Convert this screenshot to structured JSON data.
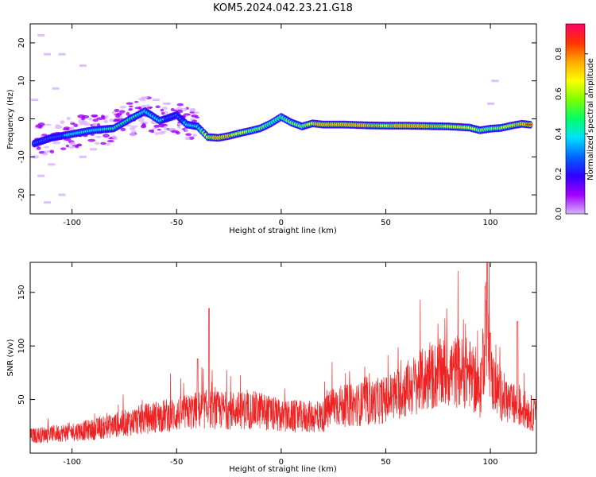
{
  "figure": {
    "title": "KOM5.2024.042.23.21.G18"
  },
  "chart_data": [
    {
      "type": "heatmap",
      "xlabel": "Height of straight line (km)",
      "ylabel": "Frequency (Hz)",
      "xlim": [
        -120,
        122
      ],
      "ylim": [
        -25,
        25
      ],
      "xticks": [
        -100,
        -50,
        0,
        50,
        100
      ],
      "yticks": [
        -20,
        -10,
        0,
        10,
        20
      ],
      "colorbar": {
        "label": "Normalized spectral amplitude",
        "range": [
          0.0,
          0.95
        ],
        "ticks": [
          0.0,
          0.2,
          0.4,
          0.6,
          0.8
        ],
        "tick_labels": [
          "0.0",
          "0.2",
          "0.4",
          "0.6",
          "0.8"
        ],
        "colormap": [
          "#d8b4ff",
          "#a100ff",
          "#3000ff",
          "#0066ff",
          "#00e0ff",
          "#00ff66",
          "#7cff00",
          "#ffff00",
          "#ffaa00",
          "#ff3300",
          "#ff0066"
        ]
      },
      "ridge": {
        "x": [
          -118,
          -110,
          -100,
          -90,
          -80,
          -72,
          -65,
          -58,
          -50,
          -45,
          -40,
          -35,
          -30,
          -25,
          -20,
          -15,
          -10,
          -5,
          0,
          5,
          10,
          15,
          20,
          30,
          40,
          50,
          60,
          70,
          80,
          90,
          95,
          100,
          105,
          110,
          115,
          120
        ],
        "y": [
          -6.5,
          -5,
          -4,
          -3,
          -2.5,
          0,
          2,
          -0.5,
          1,
          -1.5,
          -2,
          -4.8,
          -5,
          -4.5,
          -3.8,
          -3.2,
          -2.5,
          -1.2,
          0.5,
          -1,
          -2,
          -1.2,
          -1.5,
          -1.5,
          -1.7,
          -1.8,
          -1.8,
          -1.9,
          -2,
          -2.3,
          -3,
          -2.6,
          -2.4,
          -1.8,
          -1.3,
          -1.6
        ],
        "amplitude": [
          0.3,
          0.3,
          0.35,
          0.4,
          0.45,
          0.45,
          0.4,
          0.35,
          0.3,
          0.35,
          0.4,
          0.7,
          0.8,
          0.75,
          0.65,
          0.6,
          0.55,
          0.5,
          0.5,
          0.55,
          0.55,
          0.7,
          0.8,
          0.8,
          0.75,
          0.7,
          0.8,
          0.75,
          0.7,
          0.65,
          0.6,
          0.55,
          0.6,
          0.7,
          0.75,
          0.85
        ]
      }
    },
    {
      "type": "line",
      "xlabel": "Height of straight line (km)",
      "ylabel": "SNR (v/v)",
      "xlim": [
        -120,
        122
      ],
      "ylim": [
        0,
        178
      ],
      "xticks": [
        -100,
        -50,
        0,
        50,
        100
      ],
      "yticks": [
        50,
        100,
        150
      ],
      "color": "#ee2222",
      "envelope": {
        "x": [
          -120,
          -110,
          -100,
          -90,
          -80,
          -70,
          -60,
          -50,
          -40,
          -35,
          -30,
          -20,
          -10,
          0,
          10,
          20,
          25,
          30,
          40,
          50,
          60,
          70,
          80,
          90,
          95,
          97,
          98,
          100,
          105,
          110,
          115,
          122
        ],
        "y": [
          16,
          18,
          20,
          22,
          26,
          30,
          34,
          36,
          40,
          41,
          40,
          40,
          40,
          34,
          34,
          34,
          45,
          44,
          46,
          50,
          60,
          70,
          76,
          75,
          55,
          100,
          130,
          70,
          55,
          45,
          42,
          35
        ]
      },
      "spikes": [
        {
          "x": -34.5,
          "y": 135
        },
        {
          "x": -40,
          "y": 88
        },
        {
          "x": 98.5,
          "y": 178
        },
        {
          "x": 97.5,
          "y": 155
        },
        {
          "x": 100,
          "y": 112
        },
        {
          "x": 113,
          "y": 123
        }
      ]
    }
  ]
}
